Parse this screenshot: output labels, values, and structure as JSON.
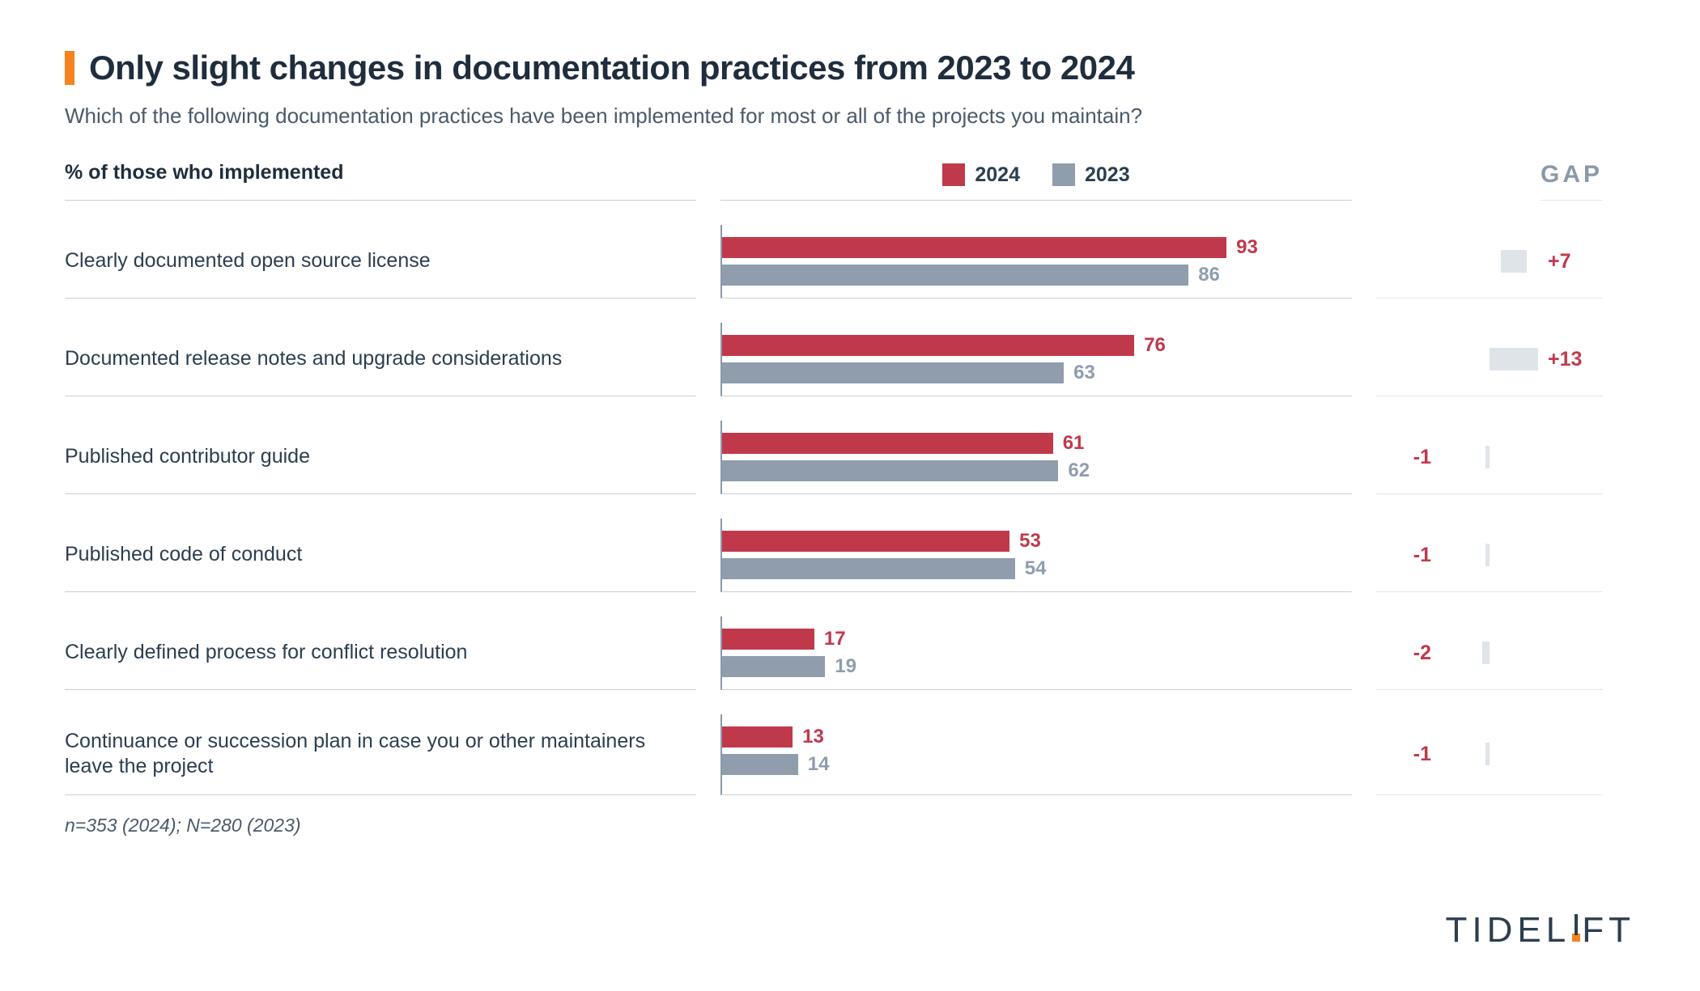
{
  "title": "Only slight changes in documentation practices from 2023 to 2024",
  "subtitle": "Which of the following documentation practices have been implemented for most or all of the projects you maintain?",
  "leftHeader": "% of those who implemented",
  "gapHeader": "GAP",
  "footnote": "n=353 (2024); N=280 (2023)",
  "brand": "TIDELIFT",
  "legend": [
    {
      "label": "2024",
      "color": "#c0394b"
    },
    {
      "label": "2023",
      "color": "#8f9dad"
    }
  ],
  "colors": {
    "val2024": "#c0394b",
    "val2023": "#8f9dad",
    "gapBar": "#dfe4e9",
    "gapText": "#c0394b",
    "accent": "#f5821f"
  },
  "chart": {
    "xMax": 100,
    "barAreaWidthPx": 670,
    "gapMax": 13,
    "gapHalfWidthPx": 60,
    "rows": [
      {
        "label": "Clearly documented open source license",
        "v2024": 93,
        "v2023": 86,
        "gap": 7,
        "gapLabel": "+7"
      },
      {
        "label": "Documented release notes and upgrade considerations",
        "v2024": 76,
        "v2023": 63,
        "gap": 13,
        "gapLabel": "+13"
      },
      {
        "label": "Published contributor guide",
        "v2024": 61,
        "v2023": 62,
        "gap": -1,
        "gapLabel": "-1"
      },
      {
        "label": "Published code of conduct",
        "v2024": 53,
        "v2023": 54,
        "gap": -1,
        "gapLabel": "-1"
      },
      {
        "label": "Clearly defined process for conflict resolution",
        "v2024": 17,
        "v2023": 19,
        "gap": -2,
        "gapLabel": "-2"
      },
      {
        "label": "Continuance or succession plan in case you or other maintainers leave the project",
        "v2024": 13,
        "v2023": 14,
        "gap": -1,
        "gapLabel": "-1"
      }
    ]
  }
}
